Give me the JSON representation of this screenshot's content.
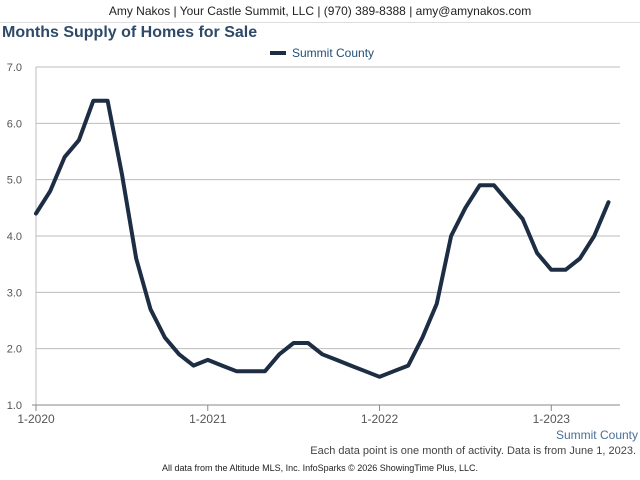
{
  "header": {
    "contact": "Amy Nakos | Your Castle Summit, LLC | (970) 389-8388 | amy@amynakos.com"
  },
  "chart_data": {
    "type": "line",
    "title": "Months Supply of Homes for Sale",
    "xlabel": "Summit County",
    "ylabel": "",
    "ylim": [
      1.0,
      7.0
    ],
    "y_ticks": [
      "1.0",
      "2.0",
      "3.0",
      "4.0",
      "5.0",
      "6.0",
      "7.0"
    ],
    "x_tick_labels": [
      "1-2020",
      "1-2021",
      "1-2022",
      "1-2023"
    ],
    "x_tick_months": [
      0,
      12,
      24,
      36
    ],
    "grid": true,
    "legend": "top-center",
    "series": [
      {
        "name": "Summit County",
        "color": "#1d2d44",
        "months": [
          0,
          1,
          2,
          3,
          4,
          5,
          6,
          7,
          8,
          9,
          10,
          11,
          12,
          13,
          14,
          15,
          16,
          17,
          18,
          19,
          20,
          21,
          22,
          23,
          24,
          25,
          26,
          27,
          28,
          29,
          30,
          31,
          32,
          33,
          34,
          35,
          36,
          37,
          38,
          39,
          40
        ],
        "values": [
          4.4,
          4.8,
          5.4,
          5.7,
          6.4,
          6.4,
          5.1,
          3.6,
          2.7,
          2.2,
          1.9,
          1.7,
          1.8,
          1.7,
          1.6,
          1.6,
          1.6,
          1.9,
          2.1,
          2.1,
          1.9,
          1.8,
          1.7,
          1.6,
          1.5,
          1.6,
          1.7,
          2.2,
          2.8,
          4.0,
          4.5,
          4.9,
          4.9,
          4.6,
          4.3,
          3.7,
          3.4,
          3.4,
          3.6,
          4.0,
          4.6
        ]
      }
    ]
  },
  "note": "Each data point is one month of activity. Data is from June 1, 2023.",
  "footer": "All data from the Altitude MLS, Inc. InfoSparks © 2026 ShowingTime Plus, LLC."
}
